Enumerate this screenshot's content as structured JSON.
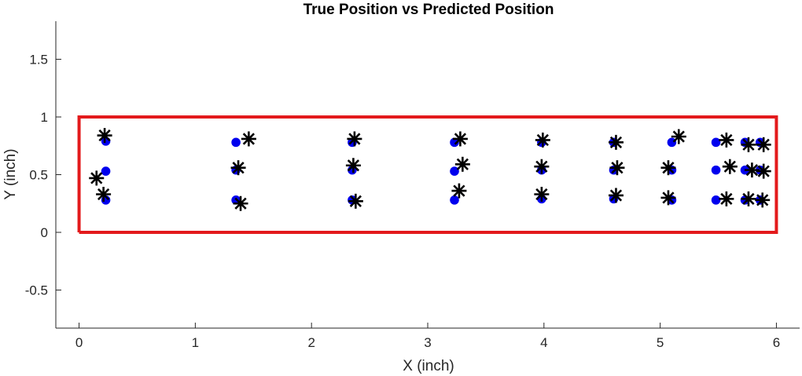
{
  "chart_data": {
    "type": "scatter",
    "title": "True Position vs Predicted Position",
    "xlabel": "X (inch)",
    "ylabel": "Y (inch)",
    "xlim": [
      -0.2,
      6.2
    ],
    "ylim": [
      -0.83,
      1.83
    ],
    "x_ticks": [
      0,
      1,
      2,
      3,
      4,
      5,
      6
    ],
    "x_tick_labels": [
      "0",
      "1",
      "2",
      "3",
      "4",
      "5",
      "6"
    ],
    "y_ticks": [
      -0.5,
      0,
      0.5,
      1,
      1.5
    ],
    "y_tick_labels": [
      "-0.5",
      "0",
      "0.5",
      "1",
      "1.5"
    ],
    "grid": false,
    "legend": "none",
    "boundary": {
      "x": [
        0,
        6,
        6,
        0,
        0
      ],
      "y": [
        0,
        0,
        1,
        1,
        0
      ],
      "color": "#e31a1c"
    },
    "series": [
      {
        "marker": "dot",
        "color": "#0000ee",
        "points": [
          [
            0.23,
            0.79
          ],
          [
            0.23,
            0.53
          ],
          [
            0.23,
            0.28
          ],
          [
            1.35,
            0.78
          ],
          [
            1.35,
            0.54
          ],
          [
            1.35,
            0.28
          ],
          [
            2.35,
            0.78
          ],
          [
            2.35,
            0.54
          ],
          [
            2.35,
            0.28
          ],
          [
            3.23,
            0.78
          ],
          [
            3.23,
            0.53
          ],
          [
            3.23,
            0.28
          ],
          [
            3.98,
            0.78
          ],
          [
            3.98,
            0.54
          ],
          [
            3.98,
            0.29
          ],
          [
            4.6,
            0.78
          ],
          [
            4.6,
            0.54
          ],
          [
            4.6,
            0.29
          ],
          [
            5.1,
            0.78
          ],
          [
            5.1,
            0.54
          ],
          [
            5.1,
            0.28
          ],
          [
            5.48,
            0.78
          ],
          [
            5.48,
            0.54
          ],
          [
            5.48,
            0.28
          ],
          [
            5.73,
            0.78
          ],
          [
            5.73,
            0.54
          ],
          [
            5.73,
            0.28
          ],
          [
            5.86,
            0.78
          ],
          [
            5.86,
            0.54
          ],
          [
            5.86,
            0.28
          ]
        ]
      },
      {
        "marker": "asterisk",
        "color": "#000000",
        "points": [
          [
            0.22,
            0.84
          ],
          [
            0.15,
            0.47
          ],
          [
            0.21,
            0.33
          ],
          [
            1.46,
            0.81
          ],
          [
            1.37,
            0.56
          ],
          [
            1.39,
            0.25
          ],
          [
            2.37,
            0.81
          ],
          [
            2.36,
            0.58
          ],
          [
            2.38,
            0.27
          ],
          [
            3.28,
            0.81
          ],
          [
            3.3,
            0.59
          ],
          [
            3.27,
            0.36
          ],
          [
            3.99,
            0.8
          ],
          [
            3.98,
            0.57
          ],
          [
            3.98,
            0.33
          ],
          [
            4.62,
            0.78
          ],
          [
            4.63,
            0.56
          ],
          [
            4.62,
            0.32
          ],
          [
            5.16,
            0.83
          ],
          [
            5.07,
            0.56
          ],
          [
            5.07,
            0.3
          ],
          [
            5.57,
            0.8
          ],
          [
            5.6,
            0.57
          ],
          [
            5.57,
            0.29
          ],
          [
            5.76,
            0.76
          ],
          [
            5.79,
            0.54
          ],
          [
            5.76,
            0.29
          ],
          [
            5.89,
            0.76
          ],
          [
            5.89,
            0.53
          ],
          [
            5.88,
            0.28
          ]
        ]
      }
    ]
  }
}
